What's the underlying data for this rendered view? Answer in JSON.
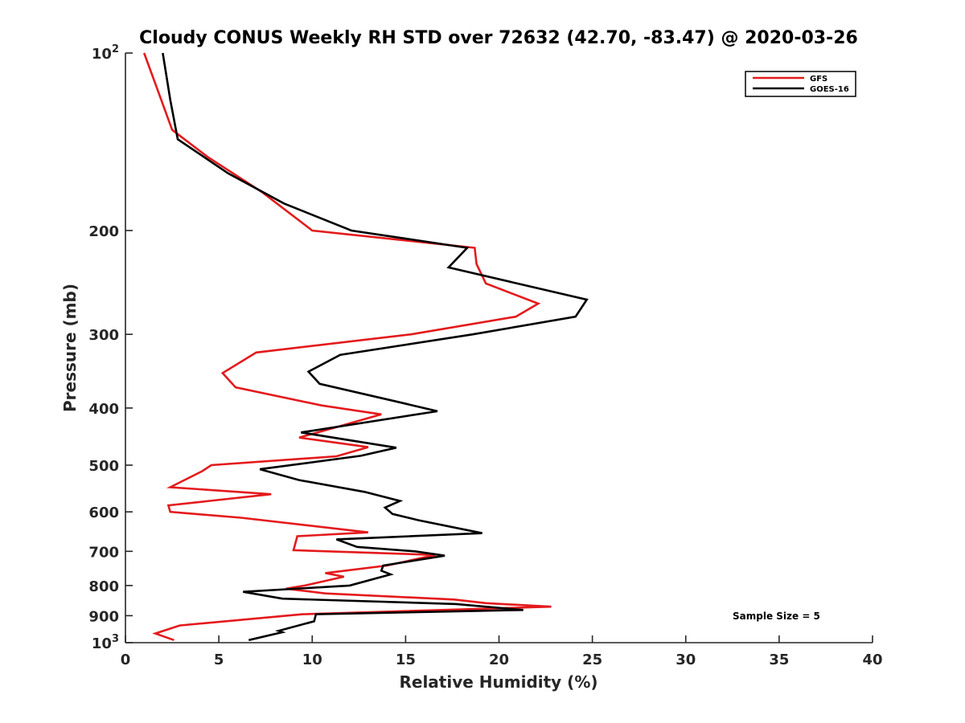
{
  "chart_data": {
    "type": "line",
    "title": "Cloudy CONUS Weekly RH STD over 72632 (42.70, -83.47) @ 2020-03-26",
    "xlabel": "Relative Humidity (%)",
    "ylabel": "Pressure (mb)",
    "xlim": [
      0,
      40
    ],
    "ylim": [
      100,
      1000
    ],
    "y_scale": "log",
    "y_reversed": true,
    "x_ticks": [
      "0",
      "5",
      "10",
      "15",
      "20",
      "25",
      "30",
      "35",
      "40"
    ],
    "y_ticks": [
      {
        "value": 100,
        "base": "10",
        "exp": "2"
      },
      {
        "value": 200,
        "label": "200"
      },
      {
        "value": 300,
        "label": "300"
      },
      {
        "value": 400,
        "label": "400"
      },
      {
        "value": 500,
        "label": "500"
      },
      {
        "value": 600,
        "label": "600"
      },
      {
        "value": 700,
        "label": "700"
      },
      {
        "value": 800,
        "label": "800"
      },
      {
        "value": 900,
        "label": "900"
      },
      {
        "value": 1000,
        "base": "10",
        "exp": "3"
      }
    ],
    "grid": false,
    "legend_position": "top-right",
    "annotation": "Sample Size = 5",
    "series": [
      {
        "name": "GFS",
        "color": "#e41a1c",
        "points": [
          [
            1.0,
            100
          ],
          [
            1.7,
            115
          ],
          [
            2.5,
            135
          ],
          [
            4.4,
            150
          ],
          [
            7.3,
            172
          ],
          [
            10.0,
            200
          ],
          [
            18.7,
            214
          ],
          [
            18.8,
            228
          ],
          [
            19.3,
            246
          ],
          [
            22.1,
            266
          ],
          [
            20.9,
            280
          ],
          [
            15.3,
            300
          ],
          [
            7.0,
            322
          ],
          [
            5.2,
            349
          ],
          [
            5.9,
            369
          ],
          [
            10.5,
            396
          ],
          [
            13.7,
            410
          ],
          [
            11.2,
            432
          ],
          [
            9.3,
            449
          ],
          [
            13.0,
            466
          ],
          [
            11.3,
            483
          ],
          [
            4.6,
            500
          ],
          [
            4.1,
            512
          ],
          [
            2.4,
            545
          ],
          [
            7.8,
            560
          ],
          [
            2.3,
            585
          ],
          [
            2.4,
            600
          ],
          [
            6.2,
            614
          ],
          [
            13.0,
            650
          ],
          [
            9.2,
            660
          ],
          [
            9.0,
            697
          ],
          [
            16.6,
            710
          ],
          [
            14.0,
            740
          ],
          [
            10.7,
            762
          ],
          [
            11.7,
            773
          ],
          [
            9.6,
            800
          ],
          [
            8.6,
            810
          ],
          [
            10.7,
            825
          ],
          [
            17.6,
            845
          ],
          [
            19.3,
            857
          ],
          [
            22.8,
            869
          ],
          [
            9.5,
            895
          ],
          [
            2.9,
            935
          ],
          [
            1.6,
            965
          ],
          [
            2.6,
            990
          ]
        ]
      },
      {
        "name": "GOES-16",
        "color": "#000000",
        "points": [
          [
            2.0,
            100
          ],
          [
            2.4,
            120
          ],
          [
            2.8,
            140
          ],
          [
            5.5,
            160
          ],
          [
            8.5,
            180
          ],
          [
            12.1,
            200
          ],
          [
            18.3,
            214
          ],
          [
            17.3,
            231
          ],
          [
            24.7,
            262
          ],
          [
            24.1,
            280
          ],
          [
            18.6,
            300
          ],
          [
            11.5,
            325
          ],
          [
            9.8,
            347
          ],
          [
            10.4,
            364
          ],
          [
            14.5,
            390
          ],
          [
            16.7,
            405
          ],
          [
            9.4,
            440
          ],
          [
            14.5,
            467
          ],
          [
            12.6,
            482
          ],
          [
            7.2,
            508
          ],
          [
            9.3,
            530
          ],
          [
            12.8,
            555
          ],
          [
            14.7,
            575
          ],
          [
            13.9,
            590
          ],
          [
            14.3,
            605
          ],
          [
            15.7,
            620
          ],
          [
            19.1,
            652
          ],
          [
            11.3,
            668
          ],
          [
            12.4,
            688
          ],
          [
            15.5,
            700
          ],
          [
            17.1,
            712
          ],
          [
            13.8,
            740
          ],
          [
            13.7,
            755
          ],
          [
            14.2,
            766
          ],
          [
            12.0,
            800
          ],
          [
            6.3,
            820
          ],
          [
            8.4,
            842
          ],
          [
            17.7,
            860
          ],
          [
            21.3,
            880
          ],
          [
            10.2,
            895
          ],
          [
            10.1,
            920
          ],
          [
            8.2,
            955
          ],
          [
            8.4,
            960
          ],
          [
            6.6,
            990
          ]
        ]
      }
    ]
  }
}
